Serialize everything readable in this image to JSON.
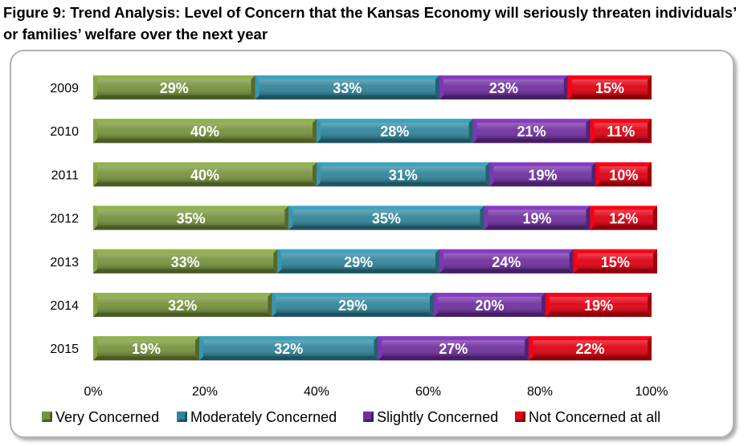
{
  "title_line1": "Figure 9: Trend Analysis: Level of Concern that the Kansas Economy will seriously threaten individuals’",
  "title_line2": "or families’ welfare over the next year",
  "chart_data": {
    "type": "bar",
    "orientation": "horizontal",
    "stacked": true,
    "categories": [
      "2009",
      "2010",
      "2011",
      "2012",
      "2013",
      "2014",
      "2015"
    ],
    "series": [
      {
        "name": "Very Concerned",
        "color": "#76923c",
        "values": [
          29,
          40,
          40,
          35,
          33,
          32,
          19
        ]
      },
      {
        "name": "Moderately Concerned",
        "color": "#31859c",
        "values": [
          33,
          28,
          31,
          35,
          29,
          29,
          32
        ]
      },
      {
        "name": "Slightly Concerned",
        "color": "#7030a0",
        "values": [
          23,
          21,
          19,
          19,
          24,
          20,
          27
        ]
      },
      {
        "name": "Not Concerned at all",
        "color": "#e00012",
        "values": [
          15,
          11,
          10,
          12,
          15,
          19,
          22
        ]
      }
    ],
    "xlim": [
      0,
      100
    ],
    "xticks": [
      "0%",
      "20%",
      "40%",
      "60%",
      "80%",
      "100%"
    ],
    "legend_position": "bottom",
    "label_suffix": "%"
  }
}
